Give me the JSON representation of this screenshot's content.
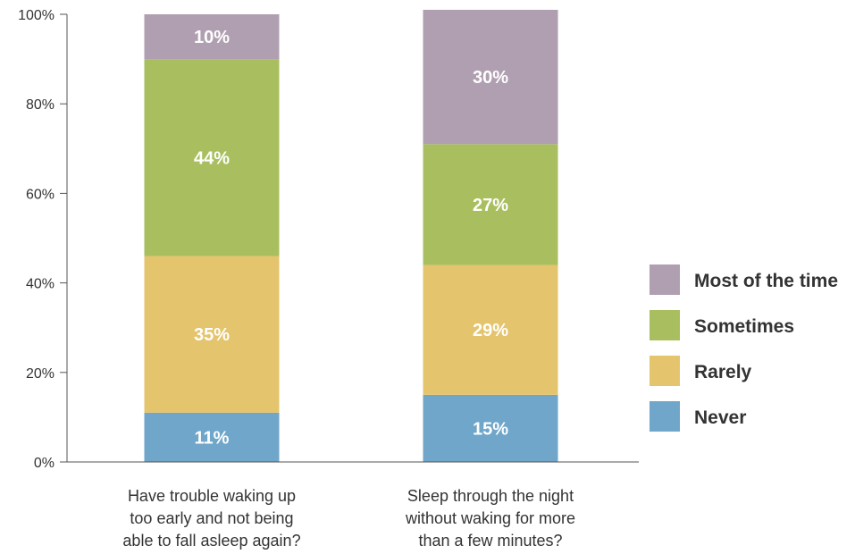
{
  "chart_data": {
    "type": "bar",
    "stacked": true,
    "categories": [
      [
        "Have trouble waking up",
        "too early and not being",
        "able to fall asleep again?"
      ],
      [
        "Sleep through the night",
        "without waking for more",
        "than a few minutes?"
      ]
    ],
    "series": [
      {
        "name": "Never",
        "color": "#6fa6c9",
        "values": [
          11,
          15
        ],
        "labels": [
          "11%",
          "15%"
        ]
      },
      {
        "name": "Rarely",
        "color": "#e4c46d",
        "values": [
          35,
          29
        ],
        "labels": [
          "35%",
          "29%"
        ]
      },
      {
        "name": "Sometimes",
        "color": "#a9bf5f",
        "values": [
          44,
          27
        ],
        "labels": [
          "44%",
          "27%"
        ]
      },
      {
        "name": "Most of the time",
        "color": "#b09fb1",
        "values": [
          10,
          30
        ],
        "labels": [
          "10%",
          "30%"
        ]
      }
    ],
    "legend_order": [
      "Most of the time",
      "Sometimes",
      "Rarely",
      "Never"
    ],
    "legend_position": "right",
    "yticks": [
      "0%",
      "20%",
      "40%",
      "60%",
      "80%",
      "100%"
    ],
    "ylim": [
      0,
      100
    ],
    "grid": false
  }
}
